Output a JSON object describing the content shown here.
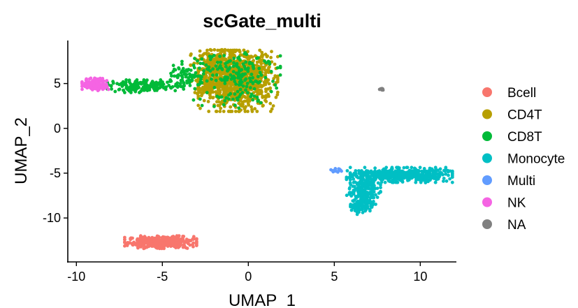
{
  "chart_data": {
    "type": "scatter",
    "title": "scGate_multi",
    "xlabel": "UMAP_1",
    "ylabel": "UMAP_2",
    "xlim": [
      -10.5,
      12.1
    ],
    "ylim": [
      -14.9,
      9.8
    ],
    "xticks": [
      -10,
      -5,
      0,
      5,
      10
    ],
    "yticks": [
      -10,
      -5,
      0,
      5
    ],
    "xtick_labels": [
      "-10",
      "-5",
      "0",
      "5",
      "10"
    ],
    "ytick_labels": [
      "-10",
      "-5",
      "0",
      "5"
    ],
    "grid": false,
    "legend_position": "right",
    "series": [
      {
        "name": "Bcell",
        "color": "#F8766D",
        "clusters": [
          {
            "center": [
              -5.1,
              -12.7
            ],
            "spread": [
              0.95,
              0.32
            ],
            "count": 420
          }
        ]
      },
      {
        "name": "CD4T",
        "color": "#B79F00",
        "clusters": [
          {
            "center": [
              -0.6,
              5.3
            ],
            "spread": [
              1.05,
              1.55
            ],
            "count": 900
          },
          {
            "center": [
              -1.6,
              6.8
            ],
            "spread": [
              0.8,
              0.9
            ],
            "count": 250
          },
          {
            "center": [
              -2.3,
              4.6
            ],
            "spread": [
              0.45,
              0.6
            ],
            "count": 80
          }
        ]
      },
      {
        "name": "CD8T",
        "color": "#00BA38",
        "clusters": [
          {
            "center": [
              -6.0,
              4.7
            ],
            "spread": [
              1.0,
              0.32
            ],
            "count": 170
          },
          {
            "center": [
              -3.8,
              5.7
            ],
            "spread": [
              0.5,
              0.6
            ],
            "count": 70
          },
          {
            "center": [
              -1.0,
              7.0
            ],
            "spread": [
              1.3,
              0.9
            ],
            "count": 110
          },
          {
            "center": [
              -1.0,
              4.5
            ],
            "spread": [
              1.2,
              1.3
            ],
            "count": 90
          }
        ]
      },
      {
        "name": "Monocyte",
        "color": "#00BFC4",
        "clusters": [
          {
            "center": [
              8.9,
              -5.2
            ],
            "spread": [
              1.35,
              0.38
            ],
            "count": 420
          },
          {
            "center": [
              6.7,
              -6.6
            ],
            "spread": [
              0.45,
              0.85
            ],
            "count": 200
          },
          {
            "center": [
              6.6,
              -8.6
            ],
            "spread": [
              0.3,
              0.45
            ],
            "count": 90
          },
          {
            "center": [
              10.3,
              -5.3
            ],
            "spread": [
              0.45,
              0.35
            ],
            "count": 60
          }
        ]
      },
      {
        "name": "Multi",
        "color": "#619CFF",
        "clusters": [
          {
            "center": [
              5.2,
              -4.7
            ],
            "spread": [
              0.18,
              0.12
            ],
            "count": 12
          }
        ]
      },
      {
        "name": "NK",
        "color": "#F564E3",
        "clusters": [
          {
            "center": [
              -8.9,
              4.9
            ],
            "spread": [
              0.35,
              0.32
            ],
            "count": 160
          }
        ]
      },
      {
        "name": "NA",
        "color": "#808080",
        "clusters": [
          {
            "center": [
              7.7,
              4.35
            ],
            "spread": [
              0.07,
              0.06
            ],
            "count": 10
          }
        ]
      }
    ]
  }
}
